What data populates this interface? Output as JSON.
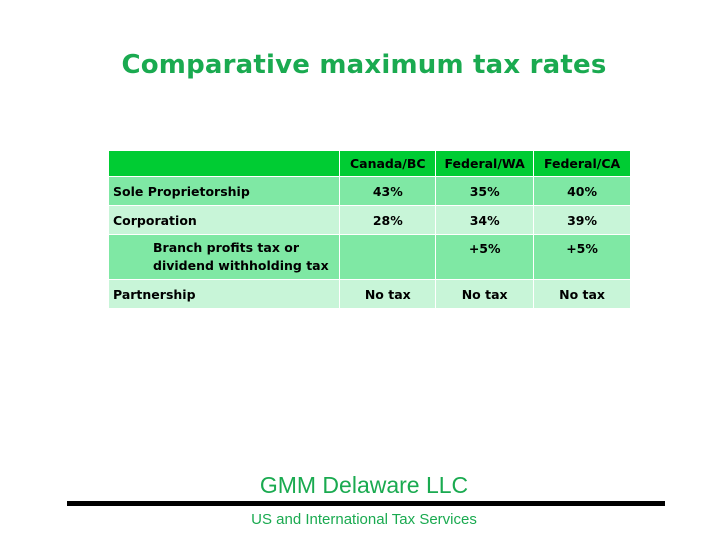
{
  "slide": {
    "title": "Comparative maximum tax rates"
  },
  "table": {
    "headers": [
      "",
      "Canada/BC",
      "Federal/WA",
      "Federal/CA"
    ],
    "rows": [
      {
        "label": "Sole Proprietorship",
        "values": [
          "43%",
          "35%",
          "40%"
        ]
      },
      {
        "label": "Corporation",
        "values": [
          "28%",
          "34%",
          "39%"
        ]
      },
      {
        "label_line1": "Branch profits tax or",
        "label_line2": "dividend withholding tax",
        "values": [
          "",
          "+5%",
          "+5%"
        ]
      },
      {
        "label": "Partnership",
        "values": [
          "No tax",
          "No tax",
          "No tax"
        ]
      }
    ]
  },
  "footer": {
    "company": "GMM Delaware LLC",
    "tagline": "US and International Tax Services"
  },
  "colors": {
    "accent": "#1aaa50",
    "header_fill": "#00cc33",
    "row_dark": "#7fe8a4",
    "row_light": "#c8f5d8"
  }
}
